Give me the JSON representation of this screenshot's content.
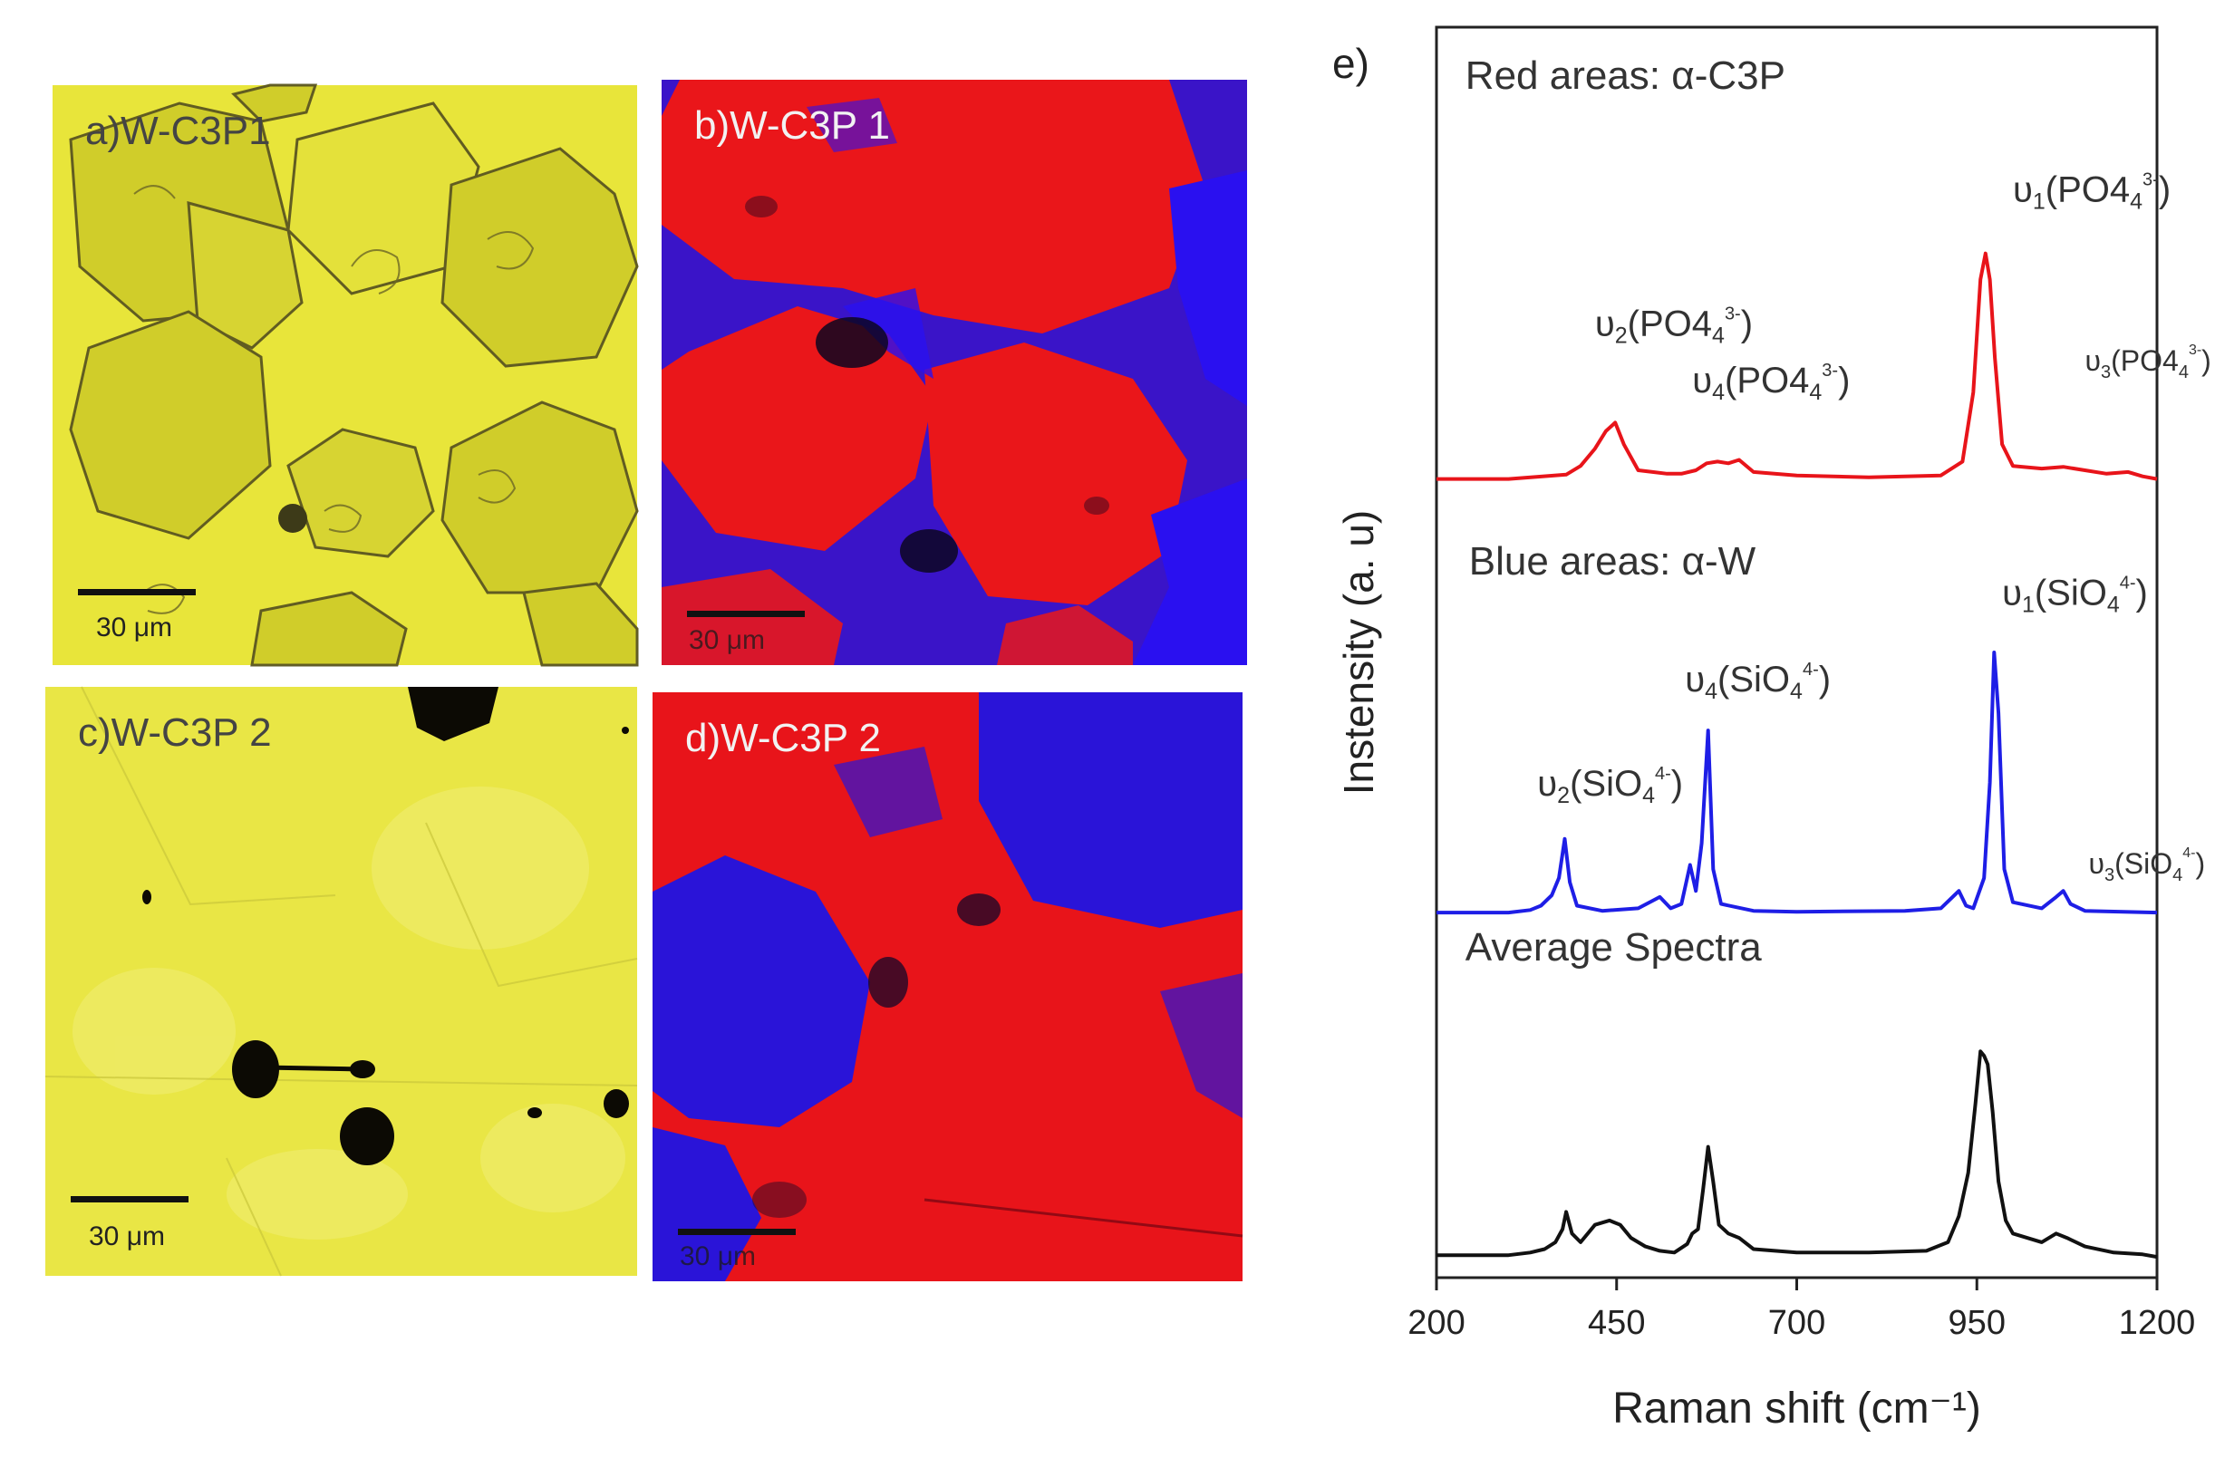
{
  "colors": {
    "micro_yellow": "#e6e22a",
    "raman_red": "#e8141a",
    "raman_blue": "#2a1ee6",
    "grain_outline": "#5a5520",
    "spectrum_red": "#e8141a",
    "spectrum_blue": "#1e1ee6",
    "spectrum_black": "#111111"
  },
  "panels": {
    "a": {
      "label": "a)W-C3P1",
      "scale": "30 μm"
    },
    "b": {
      "label": "b)W-C3P 1",
      "scale": "30 μm"
    },
    "c": {
      "label": "c)W-C3P 2",
      "scale": "30 μm"
    },
    "d": {
      "label": "d)W-C3P 2",
      "scale": "30 μm"
    }
  },
  "chart_data": {
    "type": "line",
    "panel_label": "e)",
    "xlabel": "Raman shift (cm⁻¹)",
    "ylabel": "Instensity (a. u)",
    "xlim": [
      200,
      1200
    ],
    "xticks": [
      "200",
      "450",
      "700",
      "950",
      "1200"
    ],
    "ylim": [
      0,
      14
    ],
    "grid": false,
    "y_ticks_shown": false,
    "series": [
      {
        "name": "Red areas: α-C3P",
        "color": "#e8141a",
        "offset": 9.0,
        "points": [
          [
            200,
            0
          ],
          [
            300,
            0
          ],
          [
            380,
            0.05
          ],
          [
            400,
            0.15
          ],
          [
            420,
            0.35
          ],
          [
            435,
            0.55
          ],
          [
            448,
            0.65
          ],
          [
            460,
            0.4
          ],
          [
            480,
            0.1
          ],
          [
            500,
            0.08
          ],
          [
            520,
            0.06
          ],
          [
            540,
            0.06
          ],
          [
            560,
            0.1
          ],
          [
            575,
            0.18
          ],
          [
            590,
            0.2
          ],
          [
            605,
            0.18
          ],
          [
            620,
            0.22
          ],
          [
            640,
            0.08
          ],
          [
            700,
            0.04
          ],
          [
            800,
            0.02
          ],
          [
            900,
            0.04
          ],
          [
            930,
            0.2
          ],
          [
            945,
            1.0
          ],
          [
            955,
            2.3
          ],
          [
            962,
            2.6
          ],
          [
            968,
            2.3
          ],
          [
            975,
            1.4
          ],
          [
            985,
            0.4
          ],
          [
            1000,
            0.15
          ],
          [
            1040,
            0.12
          ],
          [
            1070,
            0.14
          ],
          [
            1100,
            0.1
          ],
          [
            1130,
            0.06
          ],
          [
            1160,
            0.08
          ],
          [
            1180,
            0.03
          ],
          [
            1200,
            0
          ]
        ]
      },
      {
        "name": "Blue areas: α-W",
        "color": "#1e1ee6",
        "offset": 4.0,
        "points": [
          [
            200,
            0
          ],
          [
            300,
            0
          ],
          [
            330,
            0.03
          ],
          [
            345,
            0.08
          ],
          [
            360,
            0.2
          ],
          [
            370,
            0.4
          ],
          [
            378,
            0.85
          ],
          [
            385,
            0.35
          ],
          [
            395,
            0.08
          ],
          [
            430,
            0.02
          ],
          [
            480,
            0.05
          ],
          [
            510,
            0.18
          ],
          [
            525,
            0.05
          ],
          [
            540,
            0.1
          ],
          [
            552,
            0.55
          ],
          [
            560,
            0.25
          ],
          [
            568,
            0.8
          ],
          [
            577,
            2.1
          ],
          [
            584,
            0.5
          ],
          [
            595,
            0.1
          ],
          [
            640,
            0.02
          ],
          [
            700,
            0.01
          ],
          [
            850,
            0.02
          ],
          [
            900,
            0.05
          ],
          [
            925,
            0.25
          ],
          [
            935,
            0.08
          ],
          [
            945,
            0.05
          ],
          [
            960,
            0.4
          ],
          [
            968,
            1.5
          ],
          [
            974,
            3.0
          ],
          [
            980,
            2.3
          ],
          [
            988,
            0.5
          ],
          [
            1000,
            0.12
          ],
          [
            1040,
            0.05
          ],
          [
            1060,
            0.18
          ],
          [
            1070,
            0.25
          ],
          [
            1080,
            0.1
          ],
          [
            1100,
            0.02
          ],
          [
            1200,
            0
          ]
        ]
      },
      {
        "name": "Average Spectra",
        "color": "#111111",
        "offset": 0.0,
        "points": [
          [
            200,
            0.05
          ],
          [
            300,
            0.05
          ],
          [
            330,
            0.08
          ],
          [
            350,
            0.12
          ],
          [
            365,
            0.2
          ],
          [
            375,
            0.35
          ],
          [
            380,
            0.55
          ],
          [
            388,
            0.3
          ],
          [
            400,
            0.2
          ],
          [
            420,
            0.4
          ],
          [
            440,
            0.45
          ],
          [
            455,
            0.4
          ],
          [
            470,
            0.25
          ],
          [
            490,
            0.15
          ],
          [
            510,
            0.1
          ],
          [
            530,
            0.08
          ],
          [
            548,
            0.18
          ],
          [
            555,
            0.3
          ],
          [
            563,
            0.35
          ],
          [
            570,
            0.8
          ],
          [
            577,
            1.3
          ],
          [
            584,
            0.9
          ],
          [
            592,
            0.4
          ],
          [
            605,
            0.3
          ],
          [
            620,
            0.25
          ],
          [
            640,
            0.12
          ],
          [
            700,
            0.08
          ],
          [
            800,
            0.08
          ],
          [
            880,
            0.1
          ],
          [
            910,
            0.2
          ],
          [
            925,
            0.5
          ],
          [
            938,
            1.0
          ],
          [
            948,
            1.8
          ],
          [
            955,
            2.4
          ],
          [
            960,
            2.35
          ],
          [
            965,
            2.25
          ],
          [
            972,
            1.7
          ],
          [
            980,
            0.9
          ],
          [
            990,
            0.45
          ],
          [
            1000,
            0.3
          ],
          [
            1040,
            0.2
          ],
          [
            1060,
            0.3
          ],
          [
            1075,
            0.25
          ],
          [
            1100,
            0.15
          ],
          [
            1140,
            0.08
          ],
          [
            1180,
            0.06
          ],
          [
            1200,
            0.03
          ]
        ]
      }
    ],
    "annotations": [
      {
        "id": "ann-red-title",
        "text": "Red areas: α-C3P",
        "x": 240,
        "y": 13.5,
        "color": "#333333",
        "size": 44
      },
      {
        "id": "ann-v1-po4",
        "mode": "PO4",
        "v": "1",
        "charge": "3-",
        "x": 1000,
        "y": 12.2,
        "size": 40
      },
      {
        "id": "ann-v2-po4",
        "mode": "PO4",
        "v": "2",
        "charge": "3-",
        "x": 420,
        "y": 10.65,
        "size": 40
      },
      {
        "id": "ann-v4-po4",
        "mode": "PO4",
        "v": "4",
        "charge": "3-",
        "x": 555,
        "y": 10.0,
        "size": 40
      },
      {
        "id": "ann-v3-po4",
        "mode": "PO4",
        "v": "3",
        "charge": "3-",
        "x": 1100,
        "y": 10.25,
        "size": 32
      },
      {
        "id": "ann-blue-title",
        "text": "Blue areas: α-W",
        "x": 245,
        "y": 7.9,
        "color": "#333333",
        "size": 44
      },
      {
        "id": "ann-v1-sio4",
        "mode": "SiO",
        "v": "1",
        "charge": "4-",
        "x": 985,
        "y": 7.55,
        "size": 40
      },
      {
        "id": "ann-v4-sio4",
        "mode": "SiO",
        "v": "4",
        "charge": "4-",
        "x": 545,
        "y": 6.55,
        "size": 40
      },
      {
        "id": "ann-v2-sio4",
        "mode": "SiO",
        "v": "2",
        "charge": "4-",
        "x": 340,
        "y": 5.35,
        "size": 40
      },
      {
        "id": "ann-v3-sio4",
        "mode": "SiO",
        "v": "3",
        "charge": "4-",
        "x": 1105,
        "y": 4.45,
        "size": 32
      },
      {
        "id": "ann-avg-title",
        "text": "Average Spectra",
        "x": 240,
        "y": 3.45,
        "color": "#333333",
        "size": 44
      }
    ]
  }
}
